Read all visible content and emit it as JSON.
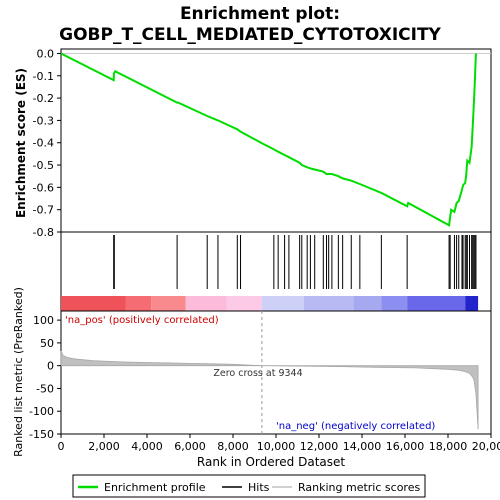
{
  "chart_data": {
    "type": "line",
    "title": "Enrichment plot:",
    "subtitle": "GOBP_T_CELL_MEDIATED_CYTOTOXICITY",
    "xlabel": "Rank in Ordered Dataset",
    "es_panel": {
      "ylabel": "Enrichment score (ES)",
      "ylim": [
        -0.8,
        0.02
      ],
      "yticks": [
        "0.0",
        "-0.1",
        "-0.2",
        "-0.3",
        "-0.4",
        "-0.5",
        "-0.6",
        "-0.7",
        "-0.8"
      ],
      "grid": false,
      "series": [
        {
          "name": "Enrichment profile",
          "color": "#00dd00",
          "x": [
            0,
            2450,
            2460,
            2520,
            5400,
            5450,
            6800,
            7300,
            8200,
            8350,
            9300,
            9900,
            10100,
            10400,
            10600,
            11100,
            11200,
            11450,
            11600,
            11800,
            12200,
            12350,
            12450,
            12600,
            12900,
            13100,
            13500,
            13900,
            14900,
            16100,
            16150,
            18050,
            18100,
            18150,
            18300,
            18400,
            18500,
            18650,
            18700,
            18800,
            18850,
            18900,
            19000,
            19100,
            19150,
            19200,
            19250,
            19300
          ],
          "y": [
            0.0,
            -0.12,
            -0.09,
            -0.08,
            -0.22,
            -0.22,
            -0.28,
            -0.3,
            -0.34,
            -0.35,
            -0.4,
            -0.43,
            -0.44,
            -0.455,
            -0.465,
            -0.49,
            -0.5,
            -0.51,
            -0.515,
            -0.52,
            -0.53,
            -0.54,
            -0.54,
            -0.54,
            -0.55,
            -0.56,
            -0.57,
            -0.585,
            -0.625,
            -0.685,
            -0.67,
            -0.77,
            -0.73,
            -0.7,
            -0.71,
            -0.67,
            -0.66,
            -0.61,
            -0.59,
            -0.58,
            -0.54,
            -0.48,
            -0.49,
            -0.42,
            -0.33,
            -0.23,
            -0.12,
            0.0
          ]
        }
      ]
    },
    "hits_panel": {
      "hit_positions": [
        2450,
        2480,
        5400,
        6800,
        7300,
        8200,
        8350,
        9900,
        10100,
        10400,
        10600,
        11100,
        11200,
        11450,
        11600,
        11800,
        12200,
        12350,
        12450,
        12600,
        12900,
        13100,
        13500,
        13900,
        14900,
        16100,
        18050,
        18100,
        18300,
        18400,
        18500,
        18650,
        18700,
        18800,
        18850,
        18900,
        19000,
        19100,
        19150,
        19200,
        19250,
        19300
      ],
      "color_bands": [
        {
          "start": 0,
          "end": 3000,
          "color": "#f0525a"
        },
        {
          "start": 3000,
          "end": 4200,
          "color": "#f56c72"
        },
        {
          "start": 4200,
          "end": 5800,
          "color": "#f88a8e"
        },
        {
          "start": 5800,
          "end": 7700,
          "color": "#fbbbd9"
        },
        {
          "start": 7700,
          "end": 9344,
          "color": "#fccae6"
        },
        {
          "start": 9344,
          "end": 11300,
          "color": "#cdd0f7"
        },
        {
          "start": 11300,
          "end": 13600,
          "color": "#b8bbf3"
        },
        {
          "start": 13600,
          "end": 14900,
          "color": "#a6a9f0"
        },
        {
          "start": 14900,
          "end": 16100,
          "color": "#8d8ff0"
        },
        {
          "start": 16100,
          "end": 18800,
          "color": "#6a68ea"
        },
        {
          "start": 18800,
          "end": 19400,
          "color": "#2424cc"
        }
      ]
    },
    "metric_panel": {
      "ylabel": "Ranked list metric (PreRanked)",
      "ylim": [
        -150,
        120
      ],
      "yticks": [
        "100",
        "50",
        "0",
        "-50",
        "-100",
        "-150"
      ],
      "fill_color": "#c0c0c0",
      "x": [
        0,
        100,
        300,
        600,
        1000,
        1500,
        2000,
        3000,
        4000,
        5000,
        6000,
        7000,
        8000,
        9344,
        11000,
        13000,
        15000,
        16500,
        17500,
        18000,
        18500,
        18800,
        19000,
        19100,
        19200,
        19300,
        19350,
        19400
      ],
      "y": [
        32,
        22,
        18,
        15,
        13,
        11,
        10,
        8,
        7,
        6,
        5,
        4,
        3,
        0,
        -1,
        -2,
        -4,
        -5,
        -7,
        -8,
        -10,
        -13,
        -17,
        -22,
        -30,
        -60,
        -100,
        -140
      ],
      "pos_label": "'na_pos' (positively correlated)",
      "neg_label": "'na_neg' (negatively correlated)",
      "zero_cross_label": "Zero cross at 9344",
      "zero_cross": 9344
    },
    "x_axis": {
      "xlim": [
        0,
        20000
      ],
      "ticks": [
        0,
        2000,
        4000,
        6000,
        8000,
        10000,
        12000,
        14000,
        16000,
        18000,
        20000
      ],
      "tick_labels": [
        "0",
        "2,000",
        "4,000",
        "6,000",
        "8,000",
        "10,000",
        "12,000",
        "14,000",
        "16,000",
        "18,000",
        "20,000"
      ]
    },
    "legend": {
      "placement": "bottom",
      "entries": [
        {
          "label": "Enrichment profile",
          "color": "#00dd00",
          "kind": "line"
        },
        {
          "label": "Hits",
          "color": "#000000",
          "kind": "line"
        },
        {
          "label": "Ranking metric scores",
          "color": "#c0c0c0",
          "kind": "line"
        }
      ]
    }
  }
}
